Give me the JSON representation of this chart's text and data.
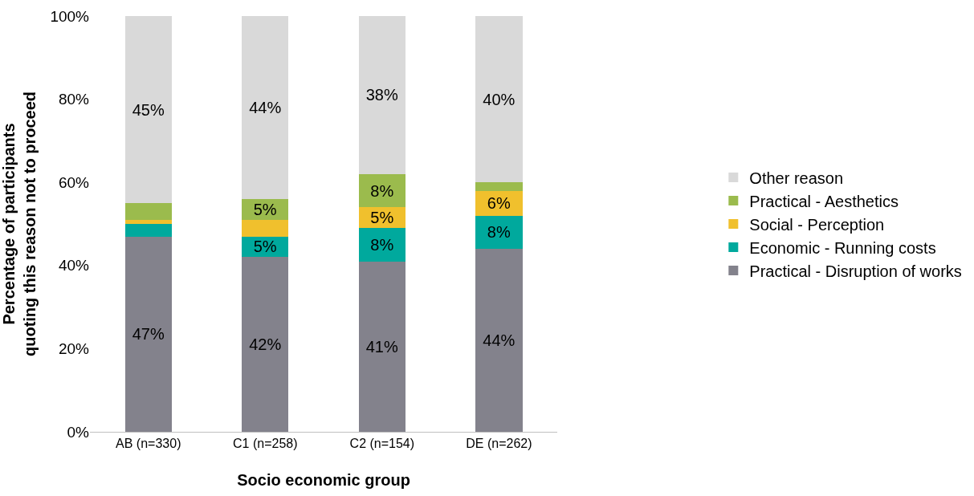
{
  "chart_data": {
    "type": "bar",
    "stacked": true,
    "xlabel": "Socio economic group",
    "ylabel": "Percentage of participants quoting this reason not to proceed",
    "categories": [
      "AB (n=330)",
      "C1 (n=258)",
      "C2 (n=154)",
      "DE (n=262)"
    ],
    "series": [
      {
        "name": "Practical - Disruption of works",
        "color": "#83828c",
        "values": [
          47,
          42,
          41,
          44
        ],
        "value_labels": [
          "47%",
          "42%",
          "41%",
          "44%"
        ]
      },
      {
        "name": "Economic - Running costs",
        "color": "#00a99d",
        "values": [
          3,
          5,
          8,
          8
        ],
        "value_labels": [
          null,
          "5%",
          "8%",
          "8%"
        ]
      },
      {
        "name": "Social - Perception",
        "color": "#f0c02d",
        "values": [
          1,
          4,
          5,
          6
        ],
        "value_labels": [
          null,
          null,
          "5%",
          "6%"
        ]
      },
      {
        "name": "Practical - Aesthetics",
        "color": "#9bbb4d",
        "values": [
          4,
          5,
          8,
          2
        ],
        "value_labels": [
          null,
          "5%",
          "8%",
          null
        ]
      },
      {
        "name": "Other reason",
        "color": "#d9d9d9",
        "values": [
          45,
          44,
          38,
          40
        ],
        "value_labels": [
          "45%",
          "44%",
          "38%",
          "40%"
        ]
      }
    ],
    "ylim": [
      0,
      100
    ],
    "yticks": [
      {
        "value": 0,
        "label": "0%"
      },
      {
        "value": 20,
        "label": "20%"
      },
      {
        "value": 40,
        "label": "40%"
      },
      {
        "value": 60,
        "label": "60%"
      },
      {
        "value": 80,
        "label": "80%"
      },
      {
        "value": 100,
        "label": "100%"
      }
    ],
    "grid": false,
    "legend": "right"
  }
}
